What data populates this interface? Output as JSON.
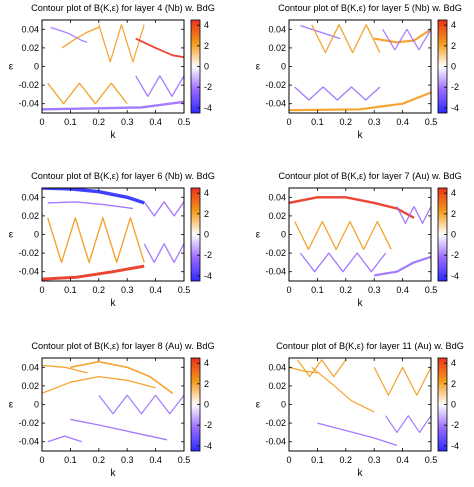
{
  "figure": {
    "colors": {
      "blue_end": "#2b2bff",
      "purple": "#9a6bff",
      "white": "#ffffff",
      "orange": "#f39a1a",
      "red_end": "#e8321e",
      "axis": "#000000"
    }
  },
  "chart_data": [
    {
      "type": "heatmap",
      "title": "Contour plot of B(K,ε)  for layer 4 (Nb) w. BdG",
      "xlabel": "k",
      "ylabel": "ε",
      "xlim": [
        0,
        0.5
      ],
      "ylim": [
        -0.05,
        0.05
      ],
      "x_ticks": [
        "0",
        "0.1",
        "0.2",
        "0.3",
        "0.4",
        "0.5"
      ],
      "y_ticks": [
        "0.04",
        "0.02",
        "0",
        "-0.02",
        "-0.04"
      ],
      "colorbar": {
        "range": [
          -4.5,
          4.5
        ],
        "ticks": [
          "4",
          "2",
          "0",
          "-2",
          "-4"
        ]
      }
    },
    {
      "type": "heatmap",
      "title": "Contour plot of B(K,ε)  for layer 5 (Nb) w. BdG",
      "xlabel": "k",
      "ylabel": "ε",
      "xlim": [
        0,
        0.5
      ],
      "ylim": [
        -0.05,
        0.05
      ],
      "x_ticks": [
        "0",
        "0.1",
        "0.2",
        "0.3",
        "0.4",
        "0.5"
      ],
      "y_ticks": [
        "0.04",
        "0.02",
        "0",
        "-0.02",
        "-0.04"
      ],
      "colorbar": {
        "range": [
          -4.5,
          4.5
        ],
        "ticks": [
          "4",
          "2",
          "0",
          "-2",
          "-4"
        ]
      }
    },
    {
      "type": "heatmap",
      "title": "Contour plot of B(K,ε)  for layer 6 (Nb) w. BdG",
      "xlabel": "k",
      "ylabel": "ε",
      "xlim": [
        0,
        0.5
      ],
      "ylim": [
        -0.05,
        0.05
      ],
      "x_ticks": [
        "0",
        "0.1",
        "0.2",
        "0.3",
        "0.4",
        "0.5"
      ],
      "y_ticks": [
        "0.04",
        "0.02",
        "0",
        "-0.02",
        "-0.04"
      ],
      "colorbar": {
        "range": [
          -4.5,
          4.5
        ],
        "ticks": [
          "4",
          "2",
          "0",
          "-2",
          "-4"
        ]
      }
    },
    {
      "type": "heatmap",
      "title": "Contour plot of B(K,ε)  for layer 7 (Au) w. BdG",
      "xlabel": "k",
      "ylabel": "ε",
      "xlim": [
        0,
        0.5
      ],
      "ylim": [
        -0.05,
        0.05
      ],
      "x_ticks": [
        "0",
        "0.1",
        "0.2",
        "0.3",
        "0.4",
        "0.5"
      ],
      "y_ticks": [
        "0.04",
        "0.02",
        "0",
        "-0.02",
        "-0.04"
      ],
      "colorbar": {
        "range": [
          -4.5,
          4.5
        ],
        "ticks": [
          "4",
          "2",
          "0",
          "-2",
          "-4"
        ]
      }
    },
    {
      "type": "heatmap",
      "title": "Contour plot of B(K,ε)  for layer 8 (Au) w. BdG",
      "xlabel": "k",
      "ylabel": "ε",
      "xlim": [
        0,
        0.5
      ],
      "ylim": [
        -0.05,
        0.05
      ],
      "x_ticks": [
        "0",
        "0.1",
        "0.2",
        "0.3",
        "0.4",
        "0.5"
      ],
      "y_ticks": [
        "0.04",
        "0.02",
        "0",
        "-0.02",
        "-0.04"
      ],
      "colorbar": {
        "range": [
          -4.5,
          4.5
        ],
        "ticks": [
          "4",
          "2",
          "0",
          "-2",
          "-4"
        ]
      }
    },
    {
      "type": "heatmap",
      "title": "Contour plot of B(K,ε)  for layer 11 (Au) w. BdG",
      "xlabel": "k",
      "ylabel": "ε",
      "xlim": [
        0,
        0.5
      ],
      "ylim": [
        -0.05,
        0.05
      ],
      "x_ticks": [
        "0",
        "0.1",
        "0.2",
        "0.3",
        "0.4",
        "0.5"
      ],
      "y_ticks": [
        "0.04",
        "0.02",
        "0",
        "-0.02",
        "-0.04"
      ],
      "colorbar": {
        "range": [
          -4.5,
          4.5
        ],
        "ticks": [
          "4",
          "2",
          "0",
          "-2",
          "-4"
        ]
      }
    }
  ]
}
